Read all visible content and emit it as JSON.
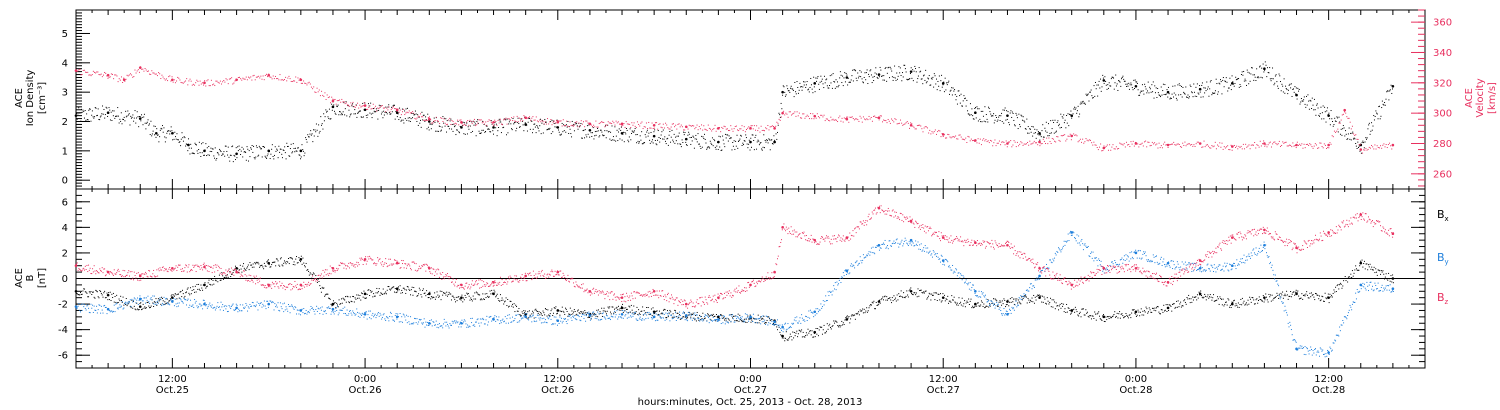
{
  "chart_data": [
    {
      "type": "scatter",
      "panel": "plasma",
      "ylabel_left": [
        "ACE",
        "Ion Density",
        "[cm⁻³]"
      ],
      "ylabel_right": [
        "ACE",
        "Velocity",
        "[km/s]"
      ],
      "y_left_ticks": [
        "0",
        "1",
        "2",
        "3",
        "4",
        "5"
      ],
      "y_left_range": [
        -0.3,
        5.8
      ],
      "y_right_ticks": [
        "260",
        "280",
        "300",
        "320",
        "340",
        "360"
      ],
      "y_right_range": [
        250,
        368
      ],
      "x_range_hours": [
        6,
        90
      ],
      "series": [
        {
          "name": "",
          "axis": "left",
          "color": "#000000",
          "x_hours": [
            6,
            8,
            10,
            11,
            12,
            13,
            14,
            16,
            18,
            20,
            22,
            24,
            26,
            28,
            30,
            32,
            34,
            36,
            38,
            40,
            42,
            44,
            46,
            48,
            49.5,
            50,
            52,
            54,
            56,
            58,
            60,
            62,
            64,
            66,
            68,
            70,
            72,
            74,
            76,
            78,
            80,
            82,
            84,
            86,
            88
          ],
          "values": [
            2.2,
            2.3,
            2.1,
            1.6,
            1.6,
            1.2,
            1.0,
            0.9,
            1.0,
            1.0,
            2.5,
            2.4,
            2.3,
            2.0,
            1.8,
            1.8,
            1.9,
            1.8,
            1.7,
            1.6,
            1.5,
            1.4,
            1.3,
            1.3,
            1.3,
            3.0,
            3.3,
            3.5,
            3.6,
            3.7,
            3.3,
            2.3,
            2.2,
            1.6,
            2.2,
            3.4,
            3.2,
            3.0,
            3.1,
            3.3,
            3.8,
            2.9,
            2.2,
            1.2,
            3.2
          ]
        },
        {
          "name": "",
          "axis": "right",
          "color": "#e8305f",
          "x_hours": [
            6,
            8,
            9,
            10,
            12,
            14,
            16,
            18,
            20,
            22,
            24,
            26,
            28,
            30,
            32,
            34,
            36,
            38,
            40,
            42,
            44,
            46,
            48,
            49.5,
            50,
            52,
            54,
            56,
            58,
            60,
            62,
            64,
            66,
            68,
            70,
            72,
            74,
            76,
            78,
            80,
            82,
            84,
            85,
            86,
            88
          ],
          "values": [
            328,
            325,
            322,
            330,
            322,
            320,
            322,
            325,
            322,
            308,
            305,
            302,
            296,
            294,
            294,
            297,
            294,
            293,
            293,
            292,
            291,
            290,
            290,
            290,
            300,
            298,
            296,
            297,
            292,
            286,
            282,
            280,
            281,
            285,
            277,
            280,
            279,
            280,
            278,
            280,
            279,
            279,
            302,
            276,
            279
          ]
        }
      ]
    },
    {
      "type": "scatter",
      "panel": "magnetic-field",
      "ylabel_left": [
        "ACE",
        "B",
        "[nT]"
      ],
      "y_ticks": [
        "-6",
        "-4",
        "-2",
        "0",
        "2",
        "4",
        "6"
      ],
      "y_range": [
        -7,
        7
      ],
      "x_range_hours": [
        6,
        90
      ],
      "zero_line": true,
      "series": [
        {
          "name": "Bx",
          "color": "#000000",
          "x_hours": [
            6,
            8,
            10,
            12,
            14,
            16,
            18,
            20,
            22,
            24,
            26,
            28,
            30,
            32,
            34,
            36,
            38,
            40,
            42,
            44,
            46,
            48,
            49.5,
            50,
            52,
            54,
            56,
            58,
            60,
            62,
            64,
            66,
            68,
            70,
            72,
            74,
            76,
            78,
            80,
            82,
            84,
            86,
            88
          ],
          "values": [
            -1.0,
            -1.3,
            -2.2,
            -1.5,
            -0.5,
            0.8,
            1.2,
            1.5,
            -2.0,
            -1.2,
            -0.8,
            -1.2,
            -1.5,
            -1.2,
            -2.8,
            -2.5,
            -2.8,
            -2.3,
            -2.6,
            -2.9,
            -3.0,
            -3.1,
            -3.3,
            -4.5,
            -4.2,
            -3.2,
            -1.8,
            -1.0,
            -1.5,
            -2.0,
            -1.8,
            -1.5,
            -2.5,
            -3.0,
            -2.6,
            -2.3,
            -1.2,
            -2.0,
            -1.5,
            -1.2,
            -1.5,
            1.2,
            0.0
          ]
        },
        {
          "name": "By",
          "color": "#1e7fdc",
          "x_hours": [
            6,
            8,
            10,
            12,
            14,
            16,
            18,
            20,
            22,
            24,
            26,
            28,
            30,
            32,
            34,
            36,
            38,
            40,
            42,
            44,
            46,
            48,
            49.5,
            50,
            52,
            54,
            56,
            58,
            60,
            62,
            64,
            66,
            68,
            70,
            72,
            74,
            76,
            78,
            80,
            82,
            84,
            86,
            88
          ],
          "values": [
            -2.2,
            -2.4,
            -1.6,
            -1.8,
            -2.0,
            -2.3,
            -2.0,
            -2.5,
            -2.4,
            -2.8,
            -3.0,
            -3.5,
            -3.5,
            -3.2,
            -3.0,
            -3.3,
            -2.9,
            -2.8,
            -3.0,
            -2.9,
            -3.2,
            -3.0,
            -3.4,
            -3.8,
            -2.6,
            0.6,
            2.6,
            3.0,
            1.4,
            -1.0,
            -2.8,
            0.2,
            3.6,
            0.8,
            2.0,
            1.2,
            0.8,
            1.0,
            2.6,
            -5.5,
            -5.8,
            -0.5,
            -0.8
          ]
        },
        {
          "name": "Bz",
          "color": "#e8305f",
          "x_hours": [
            6,
            8,
            10,
            12,
            14,
            16,
            18,
            20,
            22,
            24,
            26,
            28,
            30,
            32,
            34,
            36,
            38,
            40,
            42,
            44,
            46,
            48,
            49.5,
            50,
            52,
            54,
            56,
            58,
            60,
            62,
            64,
            66,
            68,
            70,
            72,
            74,
            76,
            78,
            80,
            82,
            84,
            86,
            88
          ],
          "values": [
            1.0,
            0.5,
            0.2,
            0.8,
            0.9,
            0.5,
            -0.5,
            -0.5,
            0.8,
            1.5,
            1.2,
            0.8,
            -0.5,
            -0.3,
            0.2,
            0.5,
            -1.0,
            -1.5,
            -1.0,
            -2.0,
            -1.5,
            -0.5,
            0.5,
            4.0,
            3.0,
            3.2,
            5.5,
            4.5,
            3.2,
            2.8,
            2.6,
            0.8,
            -0.5,
            0.8,
            0.8,
            -0.3,
            1.4,
            3.2,
            3.8,
            2.4,
            3.6,
            5.0,
            3.5
          ]
        }
      ]
    }
  ],
  "x_axis": {
    "tick_hours": [
      12,
      24,
      36,
      48,
      60,
      72,
      84
    ],
    "tick_labels_time": [
      "12:00",
      "0:00",
      "12:00",
      "0:00",
      "12:00",
      "0:00",
      "12:00"
    ],
    "tick_labels_date": [
      "Oct.25",
      "Oct.26",
      "Oct.26",
      "Oct.27",
      "Oct.27",
      "Oct.28",
      "Oct.28"
    ],
    "title": "hours:minutes, Oct. 25, 2013 - Oct. 28, 2013"
  },
  "legend": [
    {
      "base": "B",
      "sub": "x",
      "color": "#000000"
    },
    {
      "base": "B",
      "sub": "y",
      "color": "#1e7fdc"
    },
    {
      "base": "B",
      "sub": "z",
      "color": "#e8305f"
    }
  ]
}
